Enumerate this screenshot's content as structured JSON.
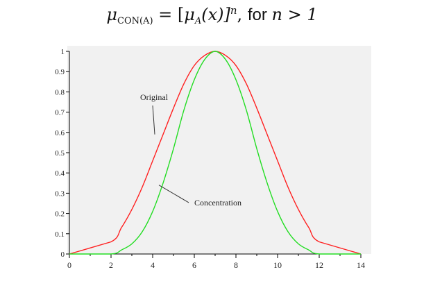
{
  "title": {
    "mu": "μ",
    "sub": "CON(A)",
    "eq": " = [",
    "mu2": "μ",
    "sub2": "A",
    "mid": "(x)]",
    "exp": "n",
    "comma": ",  ",
    "for_text": "for ",
    "cond": "n > 1"
  },
  "chart_data": {
    "type": "line",
    "xlim": [
      0,
      14
    ],
    "ylim": [
      0,
      1
    ],
    "x_ticks": [
      0,
      2,
      4,
      6,
      8,
      10,
      12,
      14
    ],
    "y_ticks": [
      0,
      0.1,
      0.2,
      0.3,
      0.4,
      0.5,
      0.6,
      0.7,
      0.8,
      0.9,
      1
    ],
    "y_tick_labels": [
      "0",
      "0.1",
      "0.2",
      "0.3",
      "0.4",
      "0.5",
      "0.6",
      "0.7",
      "0.8",
      "0.9",
      "1"
    ],
    "grid": false,
    "series": [
      {
        "name": "Original",
        "color": "#ff2020",
        "x": [
          0,
          2,
          2.5,
          3,
          3.5,
          4,
          4.5,
          5,
          5.5,
          6,
          6.5,
          7,
          7.5,
          8,
          8.5,
          9,
          9.5,
          10,
          10.5,
          11,
          11.5,
          12,
          14
        ],
        "y": [
          0,
          0.06,
          0.13,
          0.22,
          0.33,
          0.46,
          0.59,
          0.72,
          0.84,
          0.93,
          0.98,
          1.0,
          0.98,
          0.93,
          0.84,
          0.72,
          0.59,
          0.46,
          0.33,
          0.22,
          0.13,
          0.06,
          0
        ]
      },
      {
        "name": "Concentration",
        "color": "#22dd22",
        "x": [
          0,
          2,
          2.5,
          3,
          3.5,
          4,
          4.5,
          5,
          5.5,
          6,
          6.5,
          7,
          7.5,
          8,
          8.5,
          9,
          9.5,
          10,
          10.5,
          11,
          11.5,
          12,
          14
        ],
        "y": [
          0,
          0.0,
          0.02,
          0.05,
          0.11,
          0.21,
          0.35,
          0.52,
          0.71,
          0.86,
          0.96,
          1.0,
          0.96,
          0.86,
          0.71,
          0.52,
          0.35,
          0.21,
          0.11,
          0.05,
          0.02,
          0.0,
          0
        ]
      }
    ],
    "annotations": [
      {
        "text": "Original",
        "x": 3.4,
        "y": 0.76,
        "arrow_to": [
          4.1,
          0.59
        ]
      },
      {
        "text": "Concentration",
        "x": 6.0,
        "y": 0.24,
        "arrow_to": [
          4.3,
          0.34
        ]
      }
    ]
  }
}
